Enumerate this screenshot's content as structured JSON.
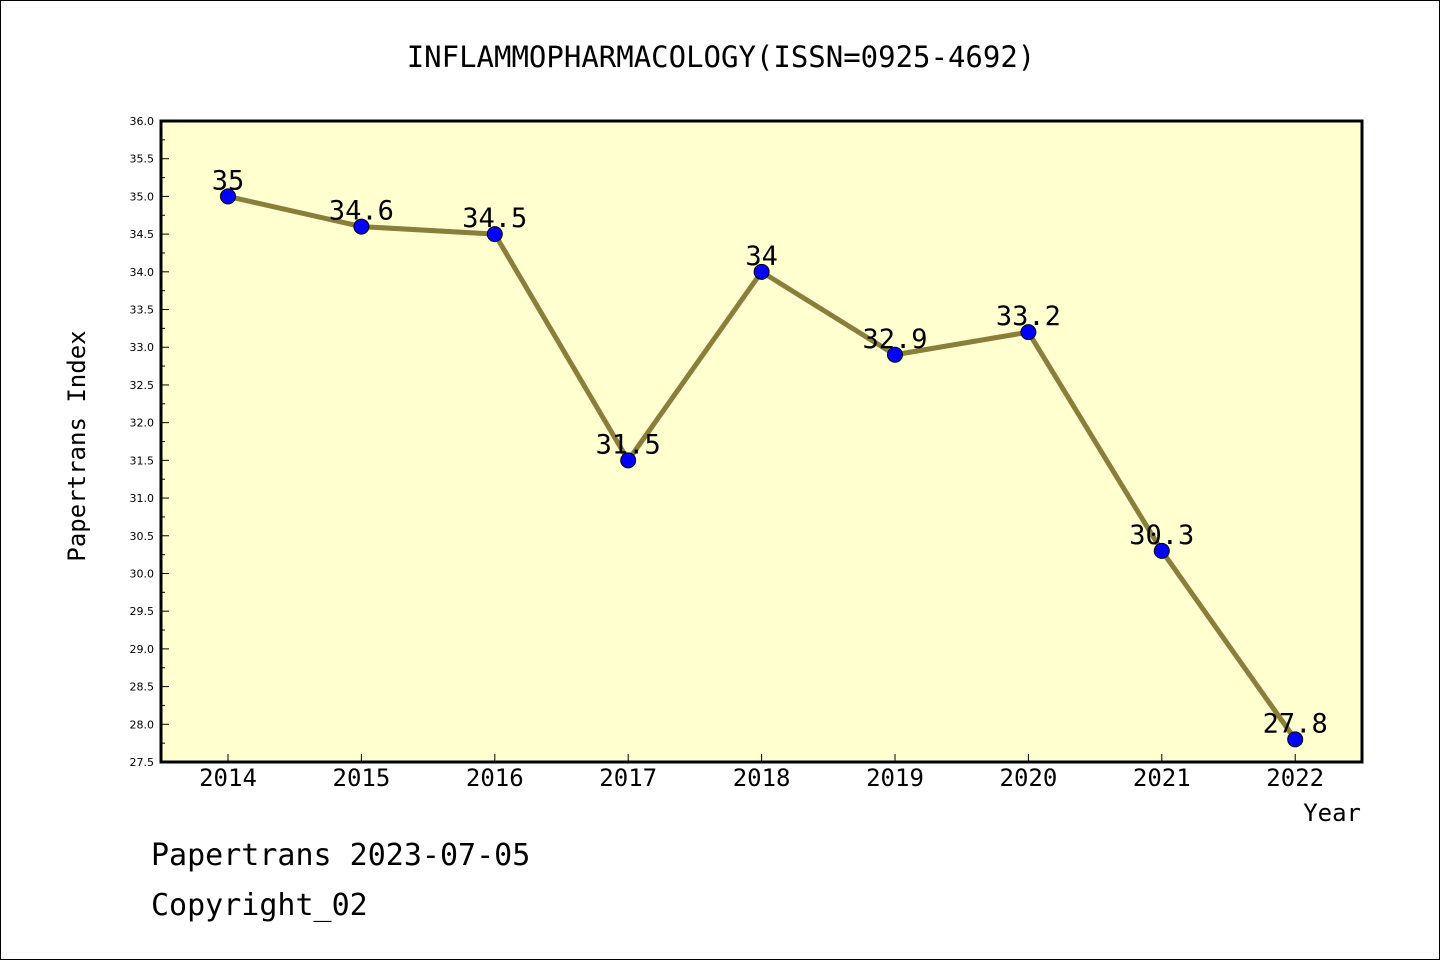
{
  "chart_data": {
    "type": "line",
    "title": "INFLAMMOPHARMACOLOGY(ISSN=0925-4692)",
    "xlabel": "Year",
    "ylabel": "Papertrans Index",
    "categories": [
      "2014",
      "2015",
      "2016",
      "2017",
      "2018",
      "2019",
      "2020",
      "2021",
      "2022"
    ],
    "values": [
      35,
      34.6,
      34.5,
      31.5,
      34,
      32.9,
      33.2,
      30.3,
      27.8
    ],
    "point_labels": [
      "35",
      "34.6",
      "34.5",
      "31.5",
      "34",
      "32.9",
      "33.2",
      "30.3",
      "27.8"
    ],
    "ylim": [
      27.5,
      36.0
    ],
    "ytick_step": 0.5,
    "grid": false,
    "colors": {
      "plot_bg": "#ffffd0",
      "line": "#8b7d3a",
      "marker": "#0000ff"
    }
  },
  "footer": {
    "line1": "Papertrans 2023-07-05",
    "line2": "Copyright_02"
  }
}
